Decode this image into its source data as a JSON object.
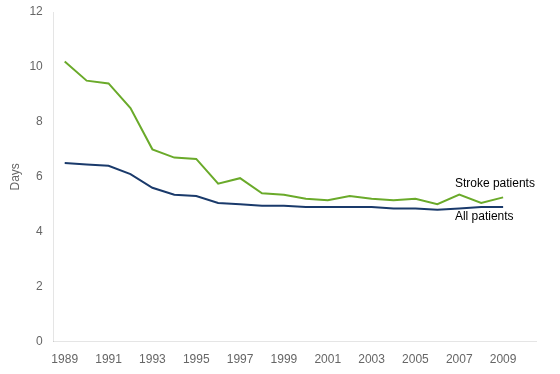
{
  "chart_data": {
    "type": "line",
    "ylabel": "Days",
    "x": [
      1989,
      1990,
      1991,
      1992,
      1993,
      1994,
      1995,
      1996,
      1997,
      1998,
      1999,
      2000,
      2001,
      2002,
      2003,
      2004,
      2005,
      2006,
      2007,
      2008,
      2009
    ],
    "series": [
      {
        "color": "#6aaa2a",
        "values": [
          10.2,
          9.5,
          9.4,
          8.5,
          7.0,
          6.7,
          6.65,
          5.75,
          5.95,
          5.4,
          5.35,
          5.2,
          5.15,
          5.3,
          5.2,
          5.15,
          5.2,
          5.0,
          5.35,
          5.05,
          5.25
        ]
      },
      {
        "color": "#1a3a6b",
        "values": [
          6.5,
          6.45,
          6.4,
          6.1,
          5.6,
          5.35,
          5.3,
          5.05,
          5.0,
          4.95,
          4.95,
          4.9,
          4.9,
          4.9,
          4.9,
          4.85,
          4.85,
          4.8,
          4.85,
          4.9,
          4.9
        ]
      }
    ],
    "xlim": [
      1988.5,
      2010.5
    ],
    "xticks": [
      1989,
      1991,
      1993,
      1995,
      1997,
      1999,
      2001,
      2003,
      2005,
      2007,
      2009
    ],
    "ylim": [
      0,
      12
    ],
    "yticks": [
      0,
      2,
      4,
      6,
      8,
      10,
      12
    ],
    "grid": false,
    "annotations": [
      {
        "text": "Stroke patients",
        "x": 2006.8,
        "y": 5.75
      },
      {
        "text": "All patients",
        "x": 2006.8,
        "y": 4.55
      }
    ]
  }
}
